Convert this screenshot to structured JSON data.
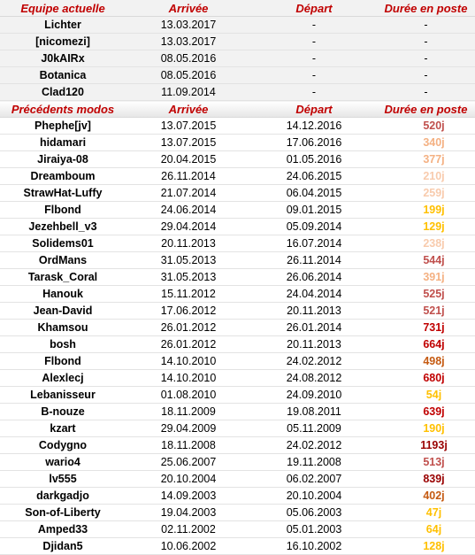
{
  "current": {
    "headers": {
      "name": "Equipe actuelle",
      "arrival": "Arrivée",
      "departure": "Départ",
      "duration": "Durée en poste"
    },
    "rows": [
      {
        "name": "Lichter",
        "arrival": "13.03.2017",
        "departure": "-",
        "duration": "-"
      },
      {
        "name": "[nicomezi]",
        "arrival": "13.03.2017",
        "departure": "-",
        "duration": "-"
      },
      {
        "name": "J0kAIRx",
        "arrival": "08.05.2016",
        "departure": "-",
        "duration": "-"
      },
      {
        "name": "Botanica",
        "arrival": "08.05.2016",
        "departure": "-",
        "duration": "-"
      },
      {
        "name": "Clad120",
        "arrival": "11.09.2014",
        "departure": "-",
        "duration": "-"
      }
    ]
  },
  "previous": {
    "headers": {
      "name": "Précédents modos",
      "arrival": "Arrivée",
      "departure": "Départ",
      "duration": "Durée en poste"
    },
    "rows": [
      {
        "name": "Phephe[jv]",
        "arrival": "13.07.2015",
        "departure": "14.12.2016",
        "duration": "520j",
        "color": "#c0504d"
      },
      {
        "name": "hidamari",
        "arrival": "13.07.2015",
        "departure": "17.06.2016",
        "duration": "340j",
        "color": "#f4b183"
      },
      {
        "name": "Jiraiya-08",
        "arrival": "20.04.2015",
        "departure": "01.05.2016",
        "duration": "377j",
        "color": "#f4b183"
      },
      {
        "name": "Dreamboum",
        "arrival": "26.11.2014",
        "departure": "24.06.2015",
        "duration": "210j",
        "color": "#f8cbad"
      },
      {
        "name": "StrawHat-Luffy",
        "arrival": "21.07.2014",
        "departure": "06.04.2015",
        "duration": "259j",
        "color": "#f8cbad"
      },
      {
        "name": "Flbond",
        "arrival": "24.06.2014",
        "departure": "09.01.2015",
        "duration": "199j",
        "color": "#ffc000"
      },
      {
        "name": "Jezehbell_v3",
        "arrival": "29.04.2014",
        "departure": "05.09.2014",
        "duration": "129j",
        "color": "#ffc000"
      },
      {
        "name": "Solidems01",
        "arrival": "20.11.2013",
        "departure": "16.07.2014",
        "duration": "238j",
        "color": "#f8cbad"
      },
      {
        "name": "OrdMans",
        "arrival": "31.05.2013",
        "departure": "26.11.2014",
        "duration": "544j",
        "color": "#c0504d"
      },
      {
        "name": "Tarask_Coral",
        "arrival": "31.05.2013",
        "departure": "26.06.2014",
        "duration": "391j",
        "color": "#f4b183"
      },
      {
        "name": "Hanouk",
        "arrival": "15.11.2012",
        "departure": "24.04.2014",
        "duration": "525j",
        "color": "#c0504d"
      },
      {
        "name": "Jean-David",
        "arrival": "17.06.2012",
        "departure": "20.11.2013",
        "duration": "521j",
        "color": "#c0504d"
      },
      {
        "name": "Khamsou",
        "arrival": "26.01.2012",
        "departure": "26.01.2014",
        "duration": "731j",
        "color": "#c00000"
      },
      {
        "name": "bosh",
        "arrival": "26.01.2012",
        "departure": "20.11.2013",
        "duration": "664j",
        "color": "#c00000"
      },
      {
        "name": "Flbond",
        "arrival": "14.10.2010",
        "departure": "24.02.2012",
        "duration": "498j",
        "color": "#c55a11"
      },
      {
        "name": "Alexlecj",
        "arrival": "14.10.2010",
        "departure": "24.08.2012",
        "duration": "680j",
        "color": "#c00000"
      },
      {
        "name": "Lebanisseur",
        "arrival": "01.08.2010",
        "departure": "24.09.2010",
        "duration": "54j",
        "color": "#ffc000"
      },
      {
        "name": "B-nouze",
        "arrival": "18.11.2009",
        "departure": "19.08.2011",
        "duration": "639j",
        "color": "#c00000"
      },
      {
        "name": "kzart",
        "arrival": "29.04.2009",
        "departure": "05.11.2009",
        "duration": "190j",
        "color": "#ffc000"
      },
      {
        "name": "Codygno",
        "arrival": "18.11.2008",
        "departure": "24.02.2012",
        "duration": "1193j",
        "color": "#990000"
      },
      {
        "name": "wario4",
        "arrival": "25.06.2007",
        "departure": "19.11.2008",
        "duration": "513j",
        "color": "#c0504d"
      },
      {
        "name": "lv555",
        "arrival": "20.10.2004",
        "departure": "06.02.2007",
        "duration": "839j",
        "color": "#990000"
      },
      {
        "name": "darkgadjo",
        "arrival": "14.09.2003",
        "departure": "20.10.2004",
        "duration": "402j",
        "color": "#c55a11"
      },
      {
        "name": "Son-of-Liberty",
        "arrival": "19.04.2003",
        "departure": "05.06.2003",
        "duration": "47j",
        "color": "#ffc000"
      },
      {
        "name": "Amped33",
        "arrival": "02.11.2002",
        "departure": "05.01.2003",
        "duration": "64j",
        "color": "#ffc000"
      },
      {
        "name": "Djidan5",
        "arrival": "10.06.2002",
        "departure": "16.10.2002",
        "duration": "128j",
        "color": "#ffc000"
      }
    ]
  }
}
